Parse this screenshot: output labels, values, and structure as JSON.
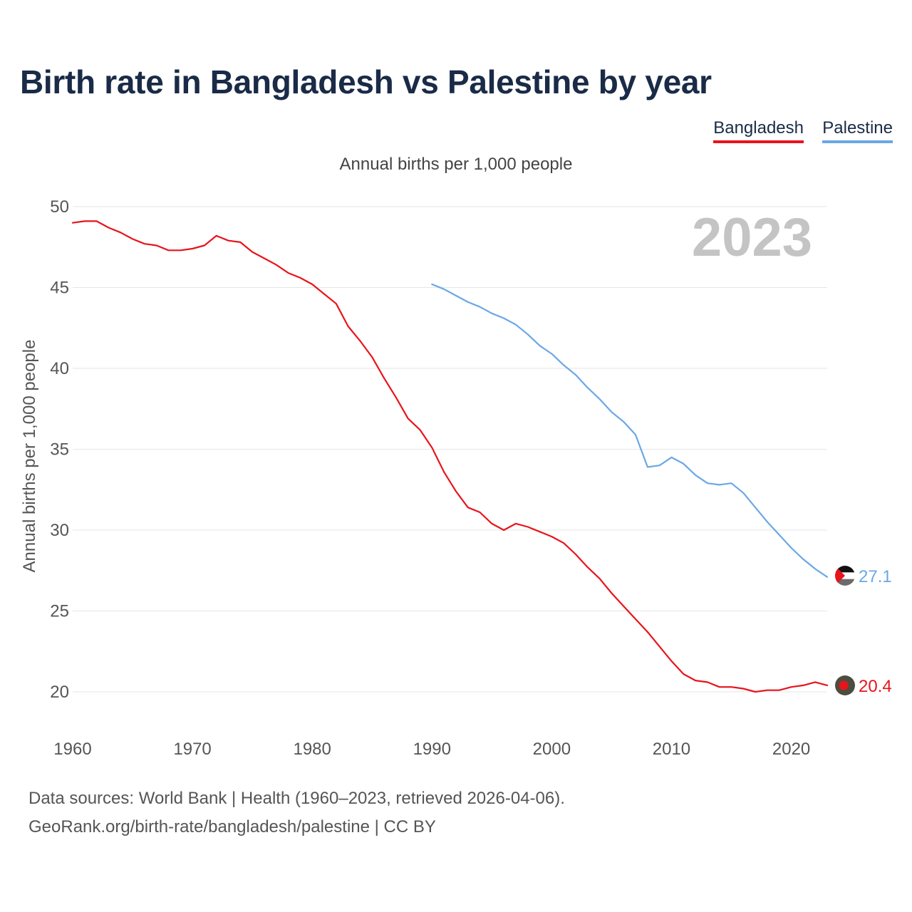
{
  "title": "Birth rate in Bangladesh vs Palestine by year",
  "legend": [
    {
      "name": "Bangladesh",
      "color": "#e8141b"
    },
    {
      "name": "Palestine",
      "color": "#6aa8e5"
    }
  ],
  "subtitle": "Annual births per 1,000 people",
  "year_label": "2023",
  "source_line1": "Data sources: World Bank | Health (1960–2023, retrieved 2026-04-06).",
  "source_line2": "GeoRank.org/birth-rate/bangladesh/palestine | CC BY",
  "chart_data": {
    "type": "line",
    "title": "Birth rate in Bangladesh vs Palestine by year",
    "xlabel": "",
    "ylabel": "Annual births per 1,000 people",
    "xlim": [
      1960,
      2023
    ],
    "ylim": [
      20,
      50
    ],
    "x_ticks": [
      1960,
      1970,
      1980,
      1990,
      2000,
      2010,
      2020
    ],
    "y_ticks": [
      20,
      25,
      30,
      35,
      40,
      45,
      50
    ],
    "series": [
      {
        "name": "Bangladesh",
        "color": "#e8141b",
        "end_label": "20.4",
        "x": [
          1960,
          1961,
          1962,
          1963,
          1964,
          1965,
          1966,
          1967,
          1968,
          1969,
          1970,
          1971,
          1972,
          1973,
          1974,
          1975,
          1976,
          1977,
          1978,
          1979,
          1980,
          1981,
          1982,
          1983,
          1984,
          1985,
          1986,
          1987,
          1988,
          1989,
          1990,
          1991,
          1992,
          1993,
          1994,
          1995,
          1996,
          1997,
          1998,
          1999,
          2000,
          2001,
          2002,
          2003,
          2004,
          2005,
          2006,
          2007,
          2008,
          2009,
          2010,
          2011,
          2012,
          2013,
          2014,
          2015,
          2016,
          2017,
          2018,
          2019,
          2020,
          2021,
          2022,
          2023
        ],
        "values": [
          49.0,
          49.1,
          49.1,
          48.7,
          48.4,
          48.0,
          47.7,
          47.6,
          47.3,
          47.3,
          47.4,
          47.6,
          48.2,
          47.9,
          47.8,
          47.2,
          46.8,
          46.4,
          45.9,
          45.6,
          45.2,
          44.6,
          44.0,
          42.6,
          41.7,
          40.7,
          39.4,
          38.2,
          36.9,
          36.2,
          35.1,
          33.6,
          32.4,
          31.4,
          31.1,
          30.4,
          30.0,
          30.4,
          30.2,
          29.9,
          29.6,
          29.2,
          28.5,
          27.7,
          27.0,
          26.1,
          25.3,
          24.5,
          23.7,
          22.8,
          21.9,
          21.1,
          20.7,
          20.6,
          20.3,
          20.3,
          20.2,
          20.0,
          20.1,
          20.1,
          20.3,
          20.4,
          20.6,
          20.4
        ]
      },
      {
        "name": "Palestine",
        "color": "#6aa8e5",
        "end_label": "27.1",
        "x": [
          1990,
          1991,
          1992,
          1993,
          1994,
          1995,
          1996,
          1997,
          1998,
          1999,
          2000,
          2001,
          2002,
          2003,
          2004,
          2005,
          2006,
          2007,
          2008,
          2009,
          2010,
          2011,
          2012,
          2013,
          2014,
          2015,
          2016,
          2017,
          2018,
          2019,
          2020,
          2021,
          2022,
          2023
        ],
        "values": [
          45.2,
          44.9,
          44.5,
          44.1,
          43.8,
          43.4,
          43.1,
          42.7,
          42.1,
          41.4,
          40.9,
          40.2,
          39.6,
          38.8,
          38.1,
          37.3,
          36.7,
          35.9,
          33.9,
          34.0,
          34.5,
          34.1,
          33.4,
          32.9,
          32.8,
          32.9,
          32.3,
          31.4,
          30.5,
          29.7,
          28.9,
          28.2,
          27.6,
          27.1
        ]
      }
    ]
  }
}
